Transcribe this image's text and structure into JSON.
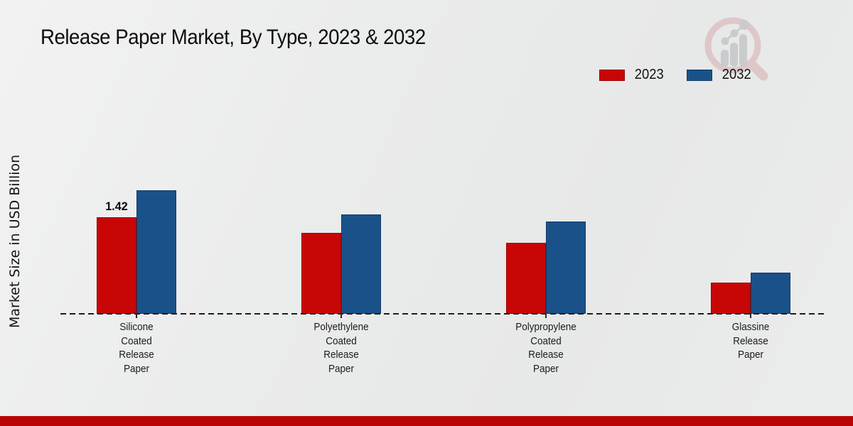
{
  "page": {
    "title": "Release Paper Market, By Type, 2023 & 2032",
    "footer_color": "#b90404",
    "background_color": "#e9eaea",
    "accent_red": "#c90606",
    "accent_blue": "#1a5189"
  },
  "icons": {
    "watermark": "magnifier-growth-chart-icon"
  },
  "legend": {
    "items": [
      {
        "label": "2023",
        "color": "#c90606"
      },
      {
        "label": "2032",
        "color": "#1a5189"
      }
    ]
  },
  "chart_data": {
    "type": "bar",
    "title": "Release Paper Market, By Type, 2023 & 2032",
    "xlabel": "",
    "ylabel": "Market Size in USD Billion",
    "categories": [
      "Silicone Coated Release Paper",
      "Polyethylene Coated Release Paper",
      "Polypropylene Coated Release Paper",
      "Glassine Release Paper"
    ],
    "category_label_lines": [
      [
        "Silicone",
        "Coated",
        "Release",
        "Paper"
      ],
      [
        "Polyethylene",
        "Coated",
        "Release",
        "Paper"
      ],
      [
        "Polypropylene",
        "Coated",
        "Release",
        "Paper"
      ],
      [
        "Glassine",
        "Release",
        "Paper"
      ]
    ],
    "series": [
      {
        "name": "2023",
        "color": "#c90606",
        "values": [
          1.42,
          1.19,
          1.04,
          0.46
        ],
        "data_labels": [
          "1.42",
          null,
          null,
          null
        ]
      },
      {
        "name": "2032",
        "color": "#1a5189",
        "values": [
          1.82,
          1.46,
          1.36,
          0.61
        ],
        "data_labels": [
          null,
          null,
          null,
          null
        ]
      }
    ],
    "ylim": [
      0,
      2.0
    ],
    "y_axis_ticks_visible": false,
    "grid": false,
    "baseline_style": "dashed",
    "legend_position": "top-right"
  }
}
